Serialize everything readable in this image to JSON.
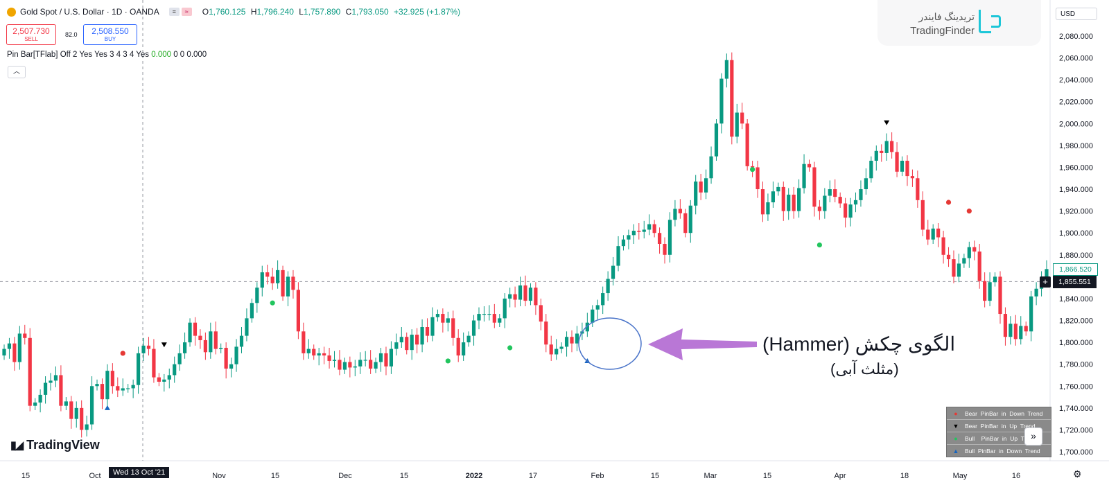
{
  "header": {
    "symbol": "Gold Spot / U.S. Dollar · 1D · OANDA",
    "ohlc": [
      {
        "k": "O",
        "v": "1,760.125"
      },
      {
        "k": "H",
        "v": "1,796.240"
      },
      {
        "k": "L",
        "v": "1,757.890"
      },
      {
        "k": "C",
        "v": "1,793.050"
      }
    ],
    "change": "+32.925 (+1.87%)"
  },
  "trade": {
    "sell_price": "2,507.730",
    "sell_label": "SELL",
    "spread": "82.0",
    "buy_price": "2,508.550",
    "buy_label": "BUY"
  },
  "indicator": {
    "name": "Pin Bar[TFlab]",
    "params": "Off 2 Yes Yes 3 4 3 4 Yes",
    "v1": "0.000",
    "v2": "0 0",
    "v3": "0.000"
  },
  "currency": "USD",
  "watermark": {
    "fa": "تریدینگ فایندر",
    "en": "TradingFinder"
  },
  "brand": "TradingView",
  "annotation": {
    "line1": "الگوی چکش (Hammer)",
    "line2": "(مثلث آبی)"
  },
  "legend": [
    {
      "marker": "●",
      "color": "#e53935",
      "text": "Bear  PinBar  in  Down  Trend"
    },
    {
      "marker": "▼",
      "color": "#000000",
      "text": "Bear  PinBar  in  Up  Trend"
    },
    {
      "marker": "●",
      "color": "#22c55e",
      "text": "Bull    PinBar  in  Up  Trend"
    },
    {
      "marker": "▲",
      "color": "#1565c0",
      "text": "Bull  PinBar  in  Down  Trend"
    }
  ],
  "crosshair_date": "Wed 13 Oct '21",
  "price_tags": {
    "last_close": "1,866.520",
    "crosshair": "1,855.551"
  },
  "colors": {
    "up": "#089981",
    "down": "#f23645",
    "bg": "#ffffff",
    "annotation_arrow": "#b977d6",
    "circle": "#4a74c9"
  },
  "chart_data": {
    "type": "candlestick",
    "y_axis_ticks": [
      "2,080.000",
      "2,060.000",
      "2,040.000",
      "2,020.000",
      "2,000.000",
      "1,980.000",
      "1,960.000",
      "1,940.000",
      "1,920.000",
      "1,900.000",
      "1,880.000",
      "1,860.000",
      "1,840.000",
      "1,820.000",
      "1,800.000",
      "1,780.000",
      "1,760.000",
      "1,740.000",
      "1,720.000",
      "1,700.000"
    ],
    "ylim": [
      1690,
      2092
    ],
    "x_axis_ticks": [
      "15",
      "Oct",
      "Nov",
      "15",
      "Dec",
      "15",
      "2022",
      "17",
      "Feb",
      "15",
      "Mar",
      "15",
      "Apr",
      "18",
      "May",
      "16"
    ],
    "candles_close": [
      1794,
      1799,
      1782,
      1808,
      1804,
      1742,
      1745,
      1752,
      1763,
      1765,
      1770,
      1742,
      1746,
      1730,
      1740,
      1720,
      1725,
      1760,
      1762,
      1748,
      1774,
      1760,
      1756,
      1758,
      1758,
      1761,
      1790,
      1797,
      1794,
      1768,
      1764,
      1766,
      1770,
      1780,
      1790,
      1800,
      1818,
      1806,
      1802,
      1791,
      1810,
      1794,
      1795,
      1776,
      1780,
      1796,
      1806,
      1822,
      1836,
      1850,
      1864,
      1860,
      1854,
      1866,
      1842,
      1860,
      1848,
      1810,
      1790,
      1794,
      1788,
      1790,
      1788,
      1783,
      1784,
      1775,
      1782,
      1777,
      1778,
      1784,
      1784,
      1776,
      1782,
      1790,
      1778,
      1794,
      1800,
      1805,
      1793,
      1807,
      1798,
      1814,
      1806,
      1823,
      1826,
      1818,
      1822,
      1804,
      1788,
      1800,
      1806,
      1820,
      1826,
      1826,
      1826,
      1818,
      1822,
      1840,
      1844,
      1839,
      1852,
      1838,
      1850,
      1834,
      1819,
      1798,
      1789,
      1794,
      1796,
      1805,
      1799,
      1808,
      1810,
      1818,
      1830,
      1834,
      1845,
      1858,
      1870,
      1888,
      1894,
      1898,
      1902,
      1901,
      1903,
      1908,
      1900,
      1890,
      1880,
      1912,
      1922,
      1918,
      1900,
      1925,
      1947,
      1937,
      1950,
      1970,
      2000,
      2041,
      2058,
      1988,
      2010,
      2000,
      1961,
      1960,
      1940,
      1917,
      1928,
      1938,
      1942,
      1920,
      1935,
      1920,
      1941,
      1963,
      1960,
      1924,
      1920,
      1934,
      1940,
      1933,
      1927,
      1914,
      1926,
      1930,
      1940,
      1950,
      1966,
      1975,
      1973,
      1984,
      1974,
      1956,
      1966,
      1952,
      1950,
      1930,
      1903,
      1894,
      1904,
      1896,
      1880,
      1876,
      1860,
      1872,
      1877,
      1887,
      1883,
      1856,
      1838,
      1855,
      1860,
      1826,
      1805,
      1817,
      1803,
      1815,
      1810,
      1842,
      1849,
      1858,
      1867
    ]
  }
}
